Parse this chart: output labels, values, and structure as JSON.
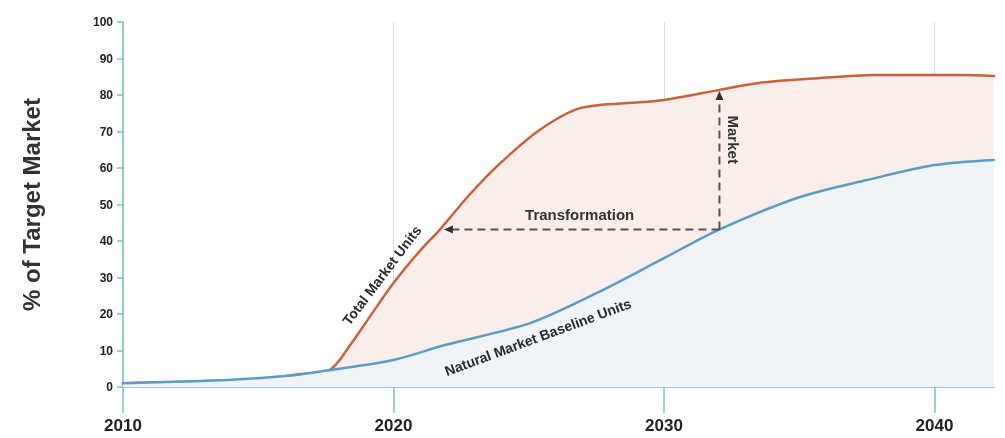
{
  "chart_data": {
    "type": "area",
    "ylabel": "% of Target Market",
    "xlim": [
      2010,
      2042.2
    ],
    "xticks": [
      2010,
      2020,
      2030,
      2040
    ],
    "ylim": [
      0,
      100
    ],
    "yticks": [
      0,
      10,
      20,
      30,
      40,
      50,
      60,
      70,
      80,
      90,
      100
    ],
    "grid": "x",
    "legend": false,
    "marker": "none",
    "line_style": "solid",
    "series": [
      {
        "name": "Total Market Units",
        "color": "#c8623a",
        "x": [
          2010,
          2013.5,
          2015,
          2016.5,
          2017.65,
          2018.4,
          2019.1,
          2020,
          2021,
          2021.7,
          2022.8,
          2023.9,
          2025.4,
          2026.9,
          2029.1,
          2030,
          2032.05,
          2033.5,
          2035.5,
          2037.8,
          2040,
          2041,
          2042.2
        ],
        "values": [
          1,
          1.7,
          2,
          3.5,
          4.7,
          11.5,
          19,
          28.5,
          37.5,
          43,
          52.6,
          61,
          70.4,
          76.4,
          78,
          78.6,
          81.4,
          83.3,
          84.5,
          85.5,
          85.5,
          85.5,
          85.2
        ]
      },
      {
        "name": "Natural Market Baseline Units",
        "color": "#5b9dc6",
        "x": [
          2010,
          2014,
          2016,
          2017.5,
          2020,
          2021.9,
          2025.05,
          2027.5,
          2030,
          2032,
          2035,
          2037.5,
          2040,
          2042.2
        ],
        "values": [
          1,
          2,
          3,
          4.5,
          7.4,
          11.5,
          17.5,
          25.7,
          35.3,
          43,
          52,
          56.7,
          60.8,
          62.2
        ]
      }
    ],
    "annotations": [
      "Transformation",
      {
        "text": "Market",
        "x": 2032.05,
        "y": 81.4
      }
    ]
  }
}
